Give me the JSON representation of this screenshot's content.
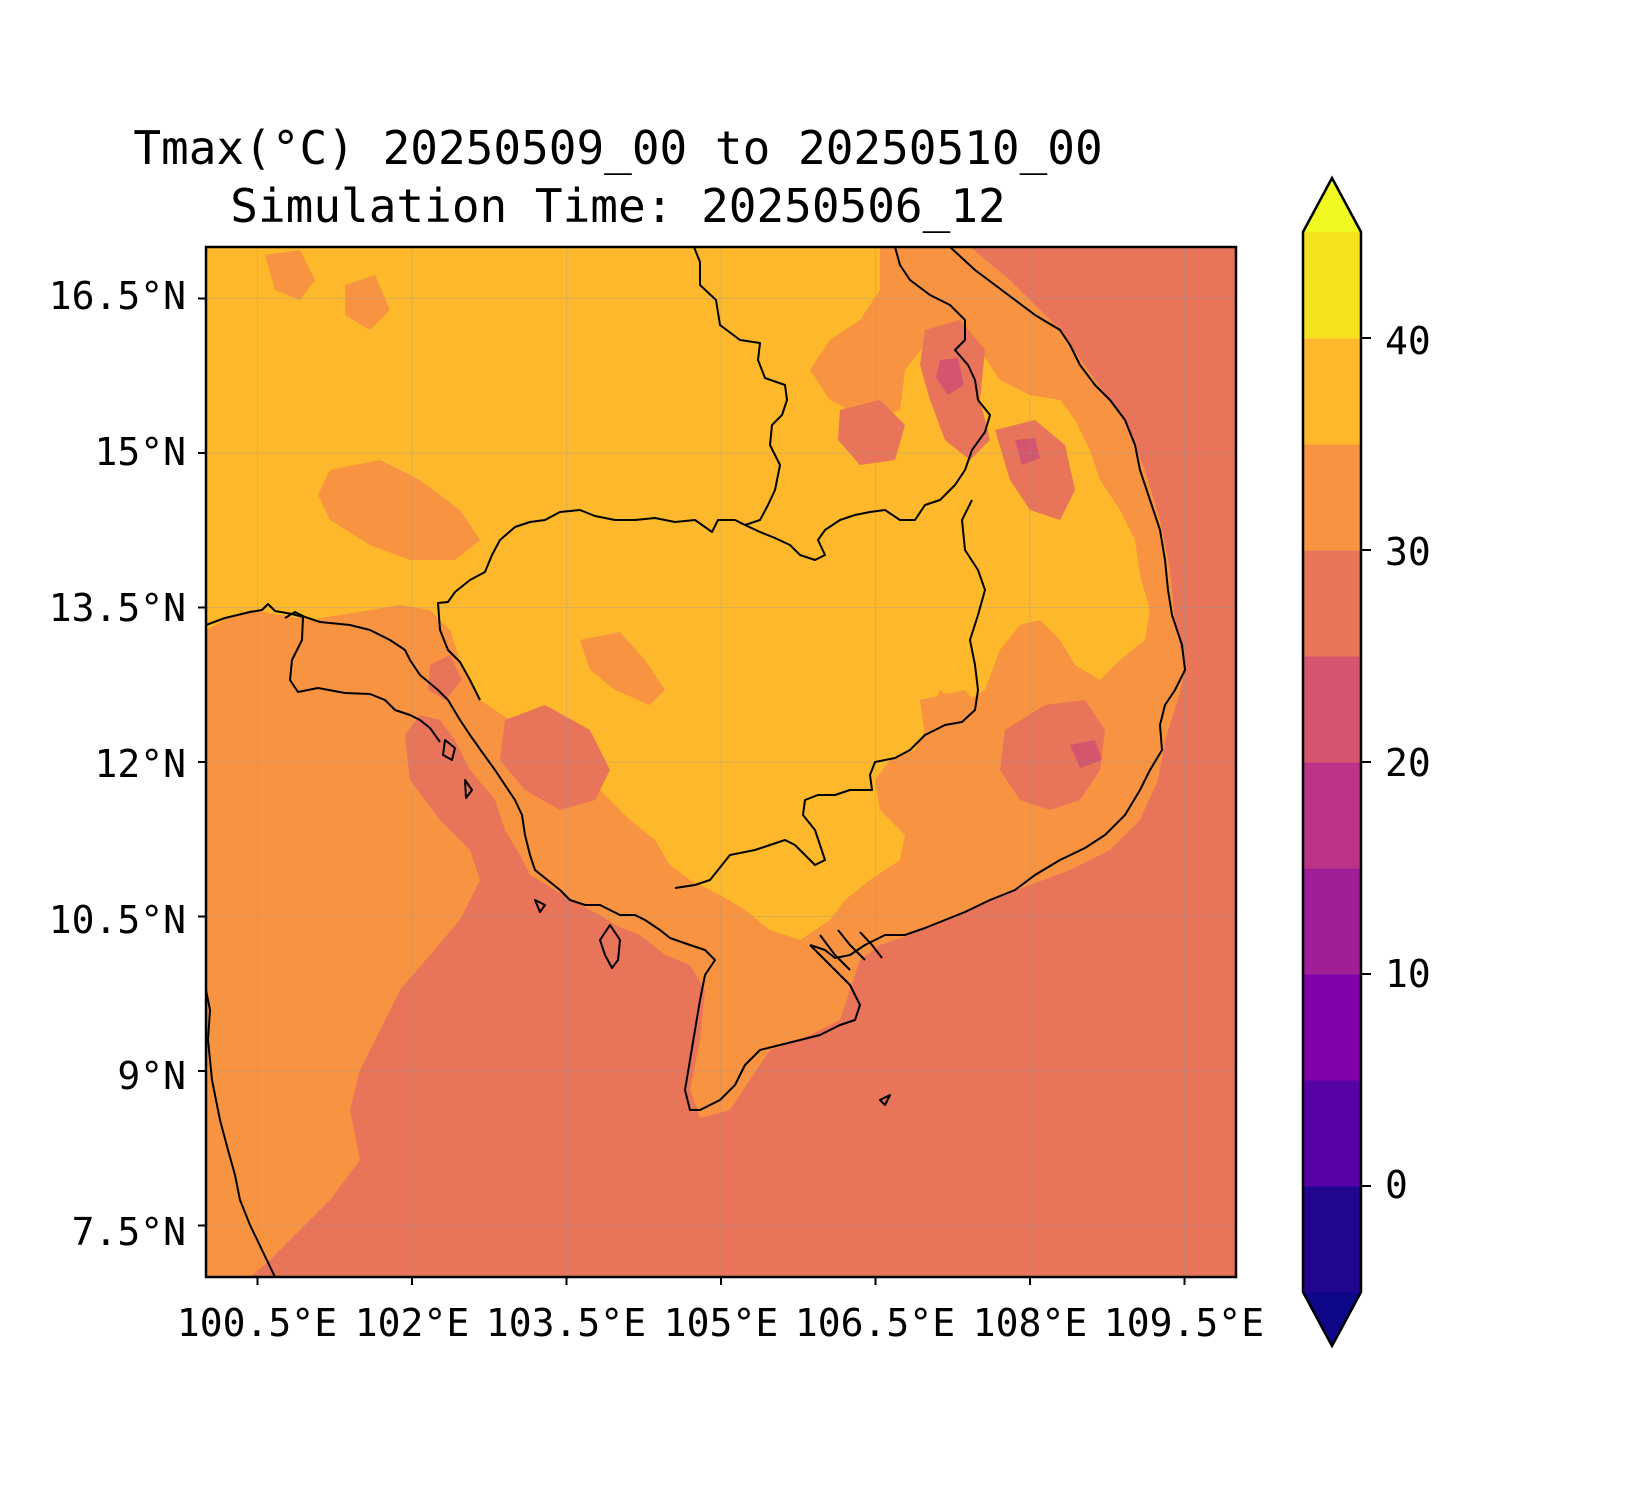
{
  "title_line1": "Tmax(°C) 20250509_00 to 20250510_00",
  "title_line2": "Simulation Time: 20250506_12",
  "map": {
    "lon_range": [
      100.0,
      110.0
    ],
    "lat_range": [
      7.0,
      17.0
    ],
    "projection": "PlateCarree",
    "gridlines": true,
    "ocean_band_value": "25-30",
    "lowland_band_value": "30-35",
    "interior_band_value": "35-40"
  },
  "axes": {
    "yticks": [
      "16.5°N",
      "15°N",
      "13.5°N",
      "12°N",
      "10.5°N",
      "9°N",
      "7.5°N"
    ],
    "ytick_values": [
      16.5,
      15,
      13.5,
      12,
      10.5,
      9,
      7.5
    ],
    "xticks": [
      "100.5°E",
      "102°E",
      "103.5°E",
      "105°E",
      "106.5°E",
      "108°E",
      "109.5°E"
    ],
    "xtick_values": [
      100.5,
      102,
      103.5,
      105,
      106.5,
      108,
      109.5
    ]
  },
  "colorbar": {
    "levels": [
      -5,
      0,
      5,
      10,
      15,
      20,
      25,
      30,
      35,
      40,
      45
    ],
    "colors": [
      "#220690",
      "#5702a4",
      "#7f00a8",
      "#a01f98",
      "#bb3487",
      "#d5546e",
      "#e8745a",
      "#f79341",
      "#fdb82c",
      "#f4e21f"
    ],
    "under_color": "#0d0887",
    "over_color": "#f0f921",
    "ticks": [
      "0",
      "10",
      "20",
      "30",
      "40"
    ],
    "tick_values": [
      0,
      10,
      20,
      30,
      40
    ],
    "extend": "both"
  }
}
